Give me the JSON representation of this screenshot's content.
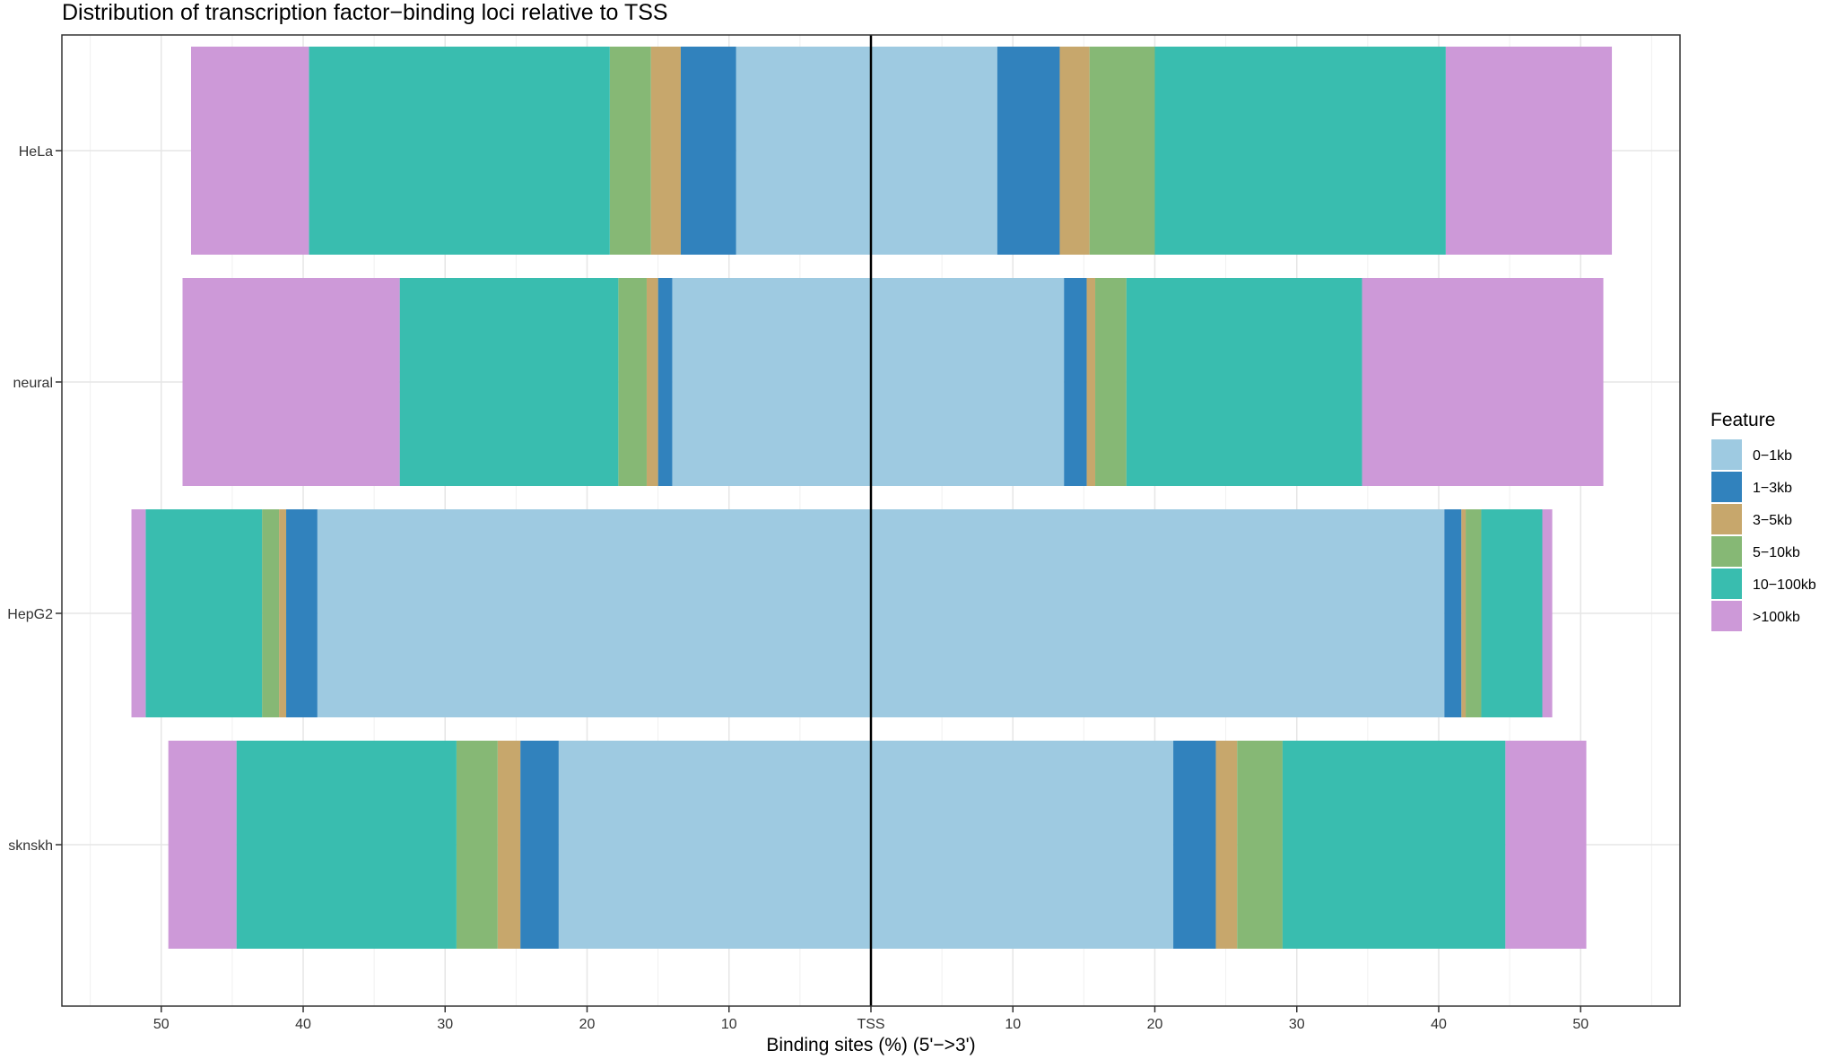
{
  "chart_data": {
    "type": "bar",
    "orientation": "horizontal",
    "stacked": "diverging",
    "title": "Distribution of transcription factor−binding loci relative to TSS",
    "xlabel": "Binding sites (%) (5'−>3')",
    "ylabel": "",
    "xlim": [
      -57,
      57
    ],
    "x_ticks": [
      -50,
      -40,
      -30,
      -20,
      -10,
      0,
      10,
      20,
      30,
      40,
      50
    ],
    "x_tick_labels": [
      "50",
      "40",
      "30",
      "20",
      "10",
      "TSS",
      "10",
      "20",
      "30",
      "40",
      "50"
    ],
    "categories": [
      "HeLa",
      "neural",
      "HepG2",
      "sknskh"
    ],
    "grid": true,
    "legend": {
      "title": "Feature",
      "placement": "right",
      "entries": [
        "0−1kb",
        "1−3kb",
        "3−5kb",
        "5−10kb",
        "10−100kb",
        ">100kb"
      ]
    },
    "colors": {
      "0-1kb": "#9ecae1",
      "1-3kb": "#3182bd",
      "3-5kb": "#c7a76c",
      "5-10kb": "#86b875",
      "10-100kb": "#39bdaf",
      ">100kb": "#cd99d8"
    },
    "series": [
      {
        "name": "0−1kb",
        "key": "0-1kb",
        "upstream": [
          9.5,
          14.0,
          39.0,
          22.0
        ],
        "downstream": [
          8.9,
          13.6,
          40.4,
          21.3
        ]
      },
      {
        "name": "1−3kb",
        "key": "1-3kb",
        "upstream": [
          3.9,
          1.0,
          2.2,
          2.7
        ],
        "downstream": [
          4.4,
          1.6,
          1.2,
          3.0
        ]
      },
      {
        "name": "3−5kb",
        "key": "3-5kb",
        "upstream": [
          2.1,
          0.8,
          0.5,
          1.6
        ],
        "downstream": [
          2.1,
          0.6,
          0.3,
          1.5
        ]
      },
      {
        "name": "5−10kb",
        "key": "5-10kb",
        "upstream": [
          2.9,
          2.0,
          1.2,
          2.9
        ],
        "downstream": [
          4.6,
          2.2,
          1.1,
          3.2
        ]
      },
      {
        "name": "10−100kb",
        "key": "10-100kb",
        "upstream": [
          21.2,
          15.4,
          8.2,
          15.5
        ],
        "downstream": [
          20.5,
          16.6,
          4.3,
          15.7
        ]
      },
      {
        "name": ">100kb",
        "key": ">100kb",
        "upstream": [
          8.3,
          15.3,
          1.0,
          4.8
        ],
        "downstream": [
          11.7,
          17.0,
          0.7,
          5.7
        ]
      }
    ]
  }
}
